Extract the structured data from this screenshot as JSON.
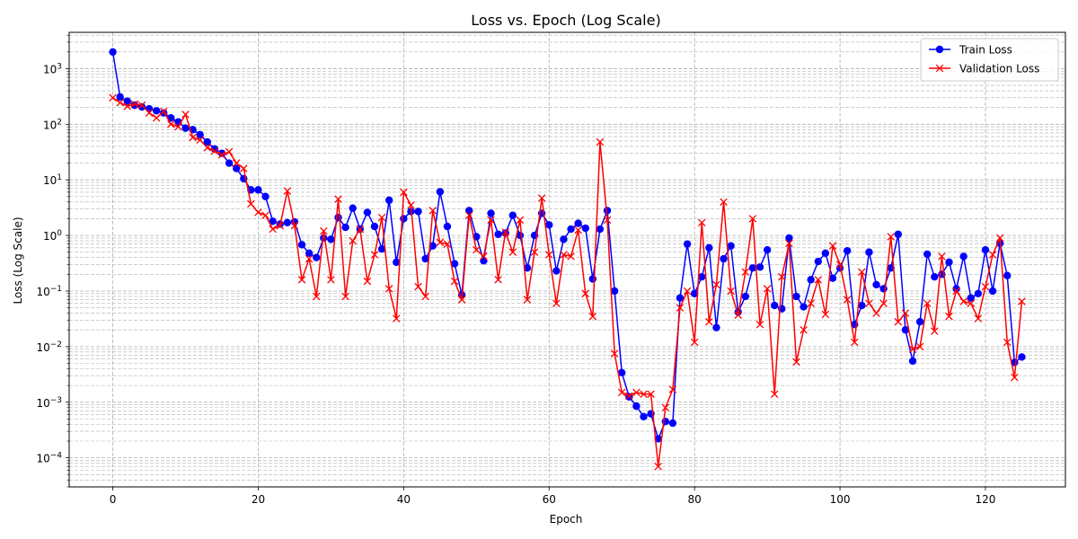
{
  "chart_data": {
    "type": "line",
    "title": "Loss vs. Epoch (Log Scale)",
    "xlabel": "Epoch",
    "ylabel": "Loss (Log Scale)",
    "xlim": [
      -6,
      131
    ],
    "ylim": [
      3e-05,
      4500
    ],
    "yscale": "log",
    "grid": "major and minor, dashed",
    "legend_position": "top-right",
    "x_ticks": [
      0,
      20,
      40,
      60,
      80,
      100,
      120
    ],
    "y_ticks": [
      {
        "value": 0.0001,
        "base": "10",
        "exp": "−4"
      },
      {
        "value": 0.001,
        "base": "10",
        "exp": "−3"
      },
      {
        "value": 0.01,
        "base": "10",
        "exp": "−2"
      },
      {
        "value": 0.1,
        "base": "10",
        "exp": "−1"
      },
      {
        "value": 1,
        "base": "10",
        "exp": "0"
      },
      {
        "value": 10,
        "base": "10",
        "exp": "1"
      },
      {
        "value": 100,
        "base": "10",
        "exp": "2"
      },
      {
        "value": 1000,
        "base": "10",
        "exp": "3"
      }
    ],
    "series": [
      {
        "name": "Train Loss",
        "color": "#0000ff",
        "marker": "circle",
        "values": [
          2000,
          310,
          260,
          220,
          205,
          190,
          175,
          160,
          130,
          110,
          85,
          80,
          65,
          48,
          36,
          30,
          20,
          16,
          10.5,
          6.6,
          6.6,
          5,
          1.8,
          1.6,
          1.7,
          1.75,
          0.68,
          0.48,
          0.4,
          0.9,
          0.85,
          2.1,
          1.4,
          3.1,
          1.3,
          2.6,
          1.45,
          0.57,
          4.3,
          0.33,
          2,
          2.7,
          2.7,
          0.38,
          0.65,
          6.1,
          1.45,
          0.31,
          0.085,
          2.8,
          0.95,
          0.35,
          2.5,
          1.05,
          1.1,
          2.3,
          1,
          0.26,
          1,
          2.5,
          1.55,
          0.23,
          0.85,
          1.3,
          1.65,
          1.35,
          0.165,
          1.3,
          2.8,
          0.1,
          0.0034,
          0.00125,
          0.00085,
          0.00055,
          0.00062,
          0.00022,
          0.00045,
          0.00042,
          0.075,
          0.7,
          0.09,
          0.18,
          0.6,
          0.022,
          0.38,
          0.65,
          0.042,
          0.08,
          0.26,
          0.27,
          0.55,
          0.055,
          0.048,
          0.9,
          0.08,
          0.052,
          0.16,
          0.34,
          0.48,
          0.17,
          0.26,
          0.53,
          0.025,
          0.055,
          0.5,
          0.13,
          0.11,
          0.26,
          1.05,
          0.02,
          0.0055,
          0.028,
          0.46,
          0.18,
          0.2,
          0.33,
          0.11,
          0.42,
          0.075,
          0.09,
          0.55,
          0.1,
          0.72,
          0.19,
          0.0052,
          0.0065
        ]
      },
      {
        "name": "Validation Loss",
        "color": "#ff0000",
        "marker": "x",
        "values": [
          300,
          245,
          210,
          230,
          220,
          160,
          130,
          170,
          100,
          90,
          150,
          58,
          52,
          38,
          33,
          28,
          32,
          20,
          16,
          3.7,
          2.6,
          2.3,
          1.3,
          1.5,
          6.3,
          1.5,
          0.16,
          0.38,
          0.08,
          1.2,
          0.16,
          4.5,
          0.08,
          0.8,
          1.3,
          0.15,
          0.45,
          2.1,
          0.11,
          0.032,
          6,
          3.5,
          0.12,
          0.08,
          2.8,
          0.75,
          0.7,
          0.15,
          0.07,
          2.3,
          0.55,
          0.42,
          1.9,
          0.16,
          1.15,
          0.5,
          1.9,
          0.07,
          0.5,
          4.7,
          0.45,
          0.06,
          0.45,
          0.42,
          1.25,
          0.09,
          0.035,
          48,
          1.9,
          0.0075,
          0.0015,
          0.0013,
          0.0015,
          0.0014,
          0.0014,
          7e-05,
          0.0008,
          0.0017,
          0.05,
          0.1,
          0.012,
          1.7,
          0.028,
          0.13,
          4,
          0.1,
          0.037,
          0.22,
          2,
          0.025,
          0.11,
          0.0014,
          0.18,
          0.72,
          0.0053,
          0.02,
          0.06,
          0.16,
          0.038,
          0.65,
          0.3,
          0.07,
          0.012,
          0.22,
          0.06,
          0.04,
          0.06,
          0.95,
          0.028,
          0.04,
          0.009,
          0.01,
          0.06,
          0.019,
          0.42,
          0.035,
          0.1,
          0.065,
          0.06,
          0.032,
          0.12,
          0.45,
          0.9,
          0.012,
          0.0028,
          0.065
        ]
      }
    ]
  }
}
